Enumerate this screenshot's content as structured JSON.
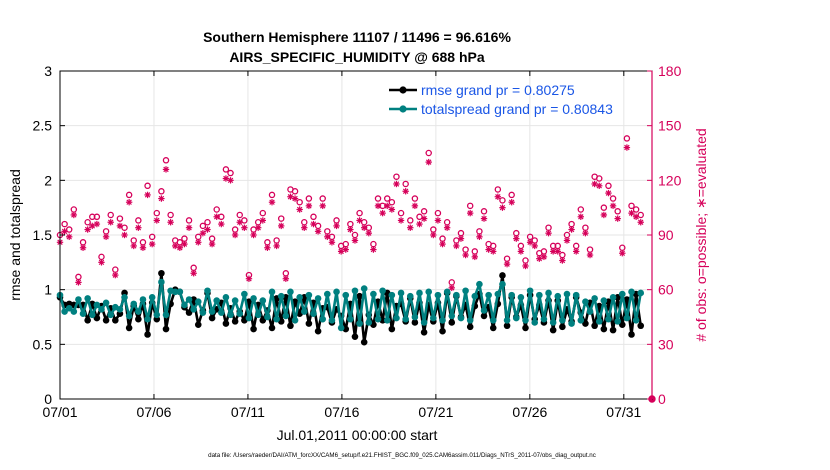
{
  "chart_data": {
    "type": "line",
    "title_line1": "Southern Hemisphere 11107 / 11496 = 96.616%",
    "title_line2": "AIRS_SPECIFIC_HUMIDITY @ 688 hPa",
    "xlabel": "Jul.01,2011 00:00:00 start",
    "ylabel_left": "rmse and totalspread",
    "ylabel_right": "# of obs: o=possible; ∗=evaluated",
    "footer": "data file: /Users/raeder/DAI/ATM_forcXX/CAM6_setup/f.e21.FHIST_BGC.f09_025.CAM6assim.011/Diags_NTrS_2011-07/obs_diag_output.nc",
    "xlim": [
      0,
      31.5
    ],
    "ylim_left": [
      0,
      3
    ],
    "ylim_right": [
      0,
      180
    ],
    "x_ticks": [
      0,
      5,
      10,
      15,
      20,
      25,
      30
    ],
    "x_tick_labels": [
      "07/01",
      "07/06",
      "07/11",
      "07/16",
      "07/21",
      "07/26",
      "07/31"
    ],
    "y_left_ticks": [
      0,
      0.5,
      1,
      1.5,
      2,
      2.5,
      3
    ],
    "y_left_tick_labels": [
      "0",
      "0.5",
      "1",
      "1.5",
      "2",
      "2.5",
      "3"
    ],
    "y_right_ticks": [
      0,
      30,
      60,
      90,
      120,
      150,
      180
    ],
    "y_right_tick_labels": [
      "0",
      "30",
      "60",
      "90",
      "120",
      "150",
      "180"
    ],
    "legend": [
      {
        "name": "rmse grand pr = 0.80275",
        "color": "#000000"
      },
      {
        "name": "totalspread grand pr = 0.80843",
        "color": "#008080"
      }
    ],
    "legend_position": "top-right",
    "colors": {
      "rmse": "#000000",
      "spread": "#008080",
      "obs": "#d6005a",
      "legend_text": "#1a56e6",
      "right_axis": "#d6005a"
    },
    "series": [
      {
        "name": "rmse",
        "values": [
          0.93,
          0.86,
          0.87,
          0.86,
          0.86,
          0.86,
          0.72,
          0.87,
          0.74,
          0.85,
          0.72,
          0.83,
          0.72,
          0.78,
          0.97,
          0.65,
          0.85,
          0.73,
          0.87,
          0.59,
          0.88,
          0.73,
          1.15,
          0.64,
          0.87,
          1.0,
          0.98,
          0.84,
          0.79,
          0.91,
          0.68,
          0.81,
          0.97,
          0.74,
          0.82,
          0.88,
          0.69,
          0.83,
          0.71,
          0.8,
          0.72,
          0.89,
          0.64,
          0.86,
          0.72,
          0.81,
          0.65,
          0.92,
          0.71,
          0.93,
          0.67,
          0.89,
          0.78,
          0.93,
          0.69,
          0.88,
          0.62,
          0.83,
          0.84,
          0.7,
          0.82,
          0.76,
          0.64,
          0.87,
          0.57,
          0.94,
          0.52,
          0.77,
          0.68,
          0.89,
          0.72,
          0.97,
          0.64,
          0.85,
          0.87,
          0.71,
          0.92,
          0.7,
          0.88,
          0.61,
          0.86,
          0.71,
          0.88,
          0.62,
          0.97,
          0.7,
          0.94,
          0.75,
          0.86,
          0.66,
          0.85,
          0.96,
          0.76,
          0.84,
          0.65,
          0.87,
          1.13,
          0.67,
          0.93,
          0.75,
          0.86,
          0.65,
          0.95,
          0.73,
          0.86,
          0.7,
          0.9,
          0.63,
          0.9,
          0.66,
          0.82,
          0.71,
          0.93,
          0.79,
          0.69,
          0.88,
          0.67,
          0.85,
          0.64,
          0.89,
          0.63,
          0.93,
          0.68,
          0.91,
          0.59,
          0.96,
          0.67
        ]
      },
      {
        "name": "totalspread",
        "values": [
          0.95,
          0.8,
          0.83,
          0.8,
          0.91,
          0.78,
          0.92,
          0.77,
          0.86,
          0.82,
          0.88,
          0.77,
          0.84,
          0.82,
          0.93,
          0.76,
          0.87,
          0.8,
          0.91,
          0.73,
          0.93,
          0.77,
          1.07,
          0.77,
          0.99,
          0.98,
          0.98,
          0.86,
          0.91,
          0.82,
          0.89,
          0.79,
          0.99,
          0.8,
          0.9,
          0.79,
          0.93,
          0.77,
          0.9,
          0.78,
          0.96,
          0.74,
          0.92,
          0.77,
          0.9,
          0.75,
          0.98,
          0.73,
          0.94,
          0.76,
          0.98,
          0.72,
          0.93,
          0.8,
          0.95,
          0.78,
          0.92,
          0.73,
          0.96,
          0.72,
          0.98,
          0.65,
          0.95,
          0.73,
          0.99,
          0.69,
          1.01,
          0.7,
          0.96,
          0.73,
          0.99,
          0.72,
          0.95,
          0.74,
          0.97,
          0.73,
          0.94,
          0.75,
          0.97,
          0.7,
          0.98,
          0.74,
          0.95,
          0.72,
          0.98,
          0.76,
          0.95,
          0.74,
          0.99,
          0.72,
          0.94,
          1.05,
          0.81,
          0.95,
          0.72,
          0.96,
          1.05,
          0.72,
          0.95,
          0.74,
          0.93,
          0.72,
          0.99,
          0.7,
          0.95,
          0.73,
          0.97,
          0.7,
          0.94,
          0.72,
          0.96,
          0.69,
          0.95,
          0.72,
          0.89,
          0.8,
          0.92,
          0.71,
          0.9,
          0.73,
          0.93,
          0.71,
          0.96,
          0.74,
          0.98,
          0.72,
          0.97
        ]
      },
      {
        "name": "obs_possible",
        "values": [
          90,
          96,
          93,
          104,
          67,
          86,
          97,
          100,
          100,
          78,
          92,
          101,
          71,
          99,
          94,
          112,
          87,
          98,
          86,
          117,
          89,
          102,
          114,
          131,
          101,
          87,
          86,
          88,
          98,
          72,
          89,
          95,
          97,
          88,
          104,
          100,
          126,
          124,
          93,
          101,
          98,
          68,
          93,
          97,
          102,
          86,
          112,
          87,
          99,
          69,
          115,
          114,
          108,
          97,
          110,
          100,
          95,
          110,
          92,
          89,
          98,
          84,
          85,
          96,
          90,
          102,
          97,
          94,
          85,
          110,
          106,
          110,
          108,
          122,
          102,
          118,
          98,
          110,
          100,
          103,
          135,
          93,
          102,
          88,
          97,
          64,
          87,
          91,
          82,
          106,
          81,
          92,
          103,
          85,
          84,
          115,
          109,
          77,
          112,
          91,
          84,
          76,
          89,
          87,
          80,
          81,
          94,
          84,
          84,
          79,
          90,
          96,
          84,
          104,
          94,
          82,
          122,
          121,
          105,
          117,
          110,
          103,
          83,
          143,
          106,
          104,
          101
        ]
      },
      {
        "name": "obs_evaluated",
        "values": [
          86,
          92,
          89,
          101,
          64,
          83,
          93,
          95,
          96,
          75,
          89,
          97,
          68,
          95,
          90,
          108,
          84,
          94,
          83,
          112,
          85,
          98,
          110,
          126,
          97,
          84,
          83,
          85,
          94,
          69,
          86,
          91,
          93,
          85,
          100,
          96,
          121,
          120,
          90,
          97,
          94,
          66,
          90,
          94,
          98,
          83,
          108,
          84,
          95,
          66,
          111,
          110,
          104,
          94,
          106,
          96,
          92,
          106,
          89,
          86,
          95,
          81,
          82,
          93,
          87,
          98,
          94,
          91,
          82,
          106,
          102,
          106,
          104,
          118,
          98,
          114,
          94,
          106,
          96,
          99,
          130,
          90,
          98,
          85,
          94,
          61,
          84,
          88,
          79,
          102,
          78,
          89,
          99,
          82,
          81,
          111,
          105,
          74,
          108,
          88,
          81,
          73,
          86,
          84,
          77,
          78,
          91,
          81,
          81,
          76,
          87,
          93,
          81,
          100,
          91,
          79,
          118,
          117,
          101,
          113,
          106,
          99,
          80,
          138,
          102,
          100,
          97
        ]
      }
    ],
    "obs_point_count": 127
  }
}
